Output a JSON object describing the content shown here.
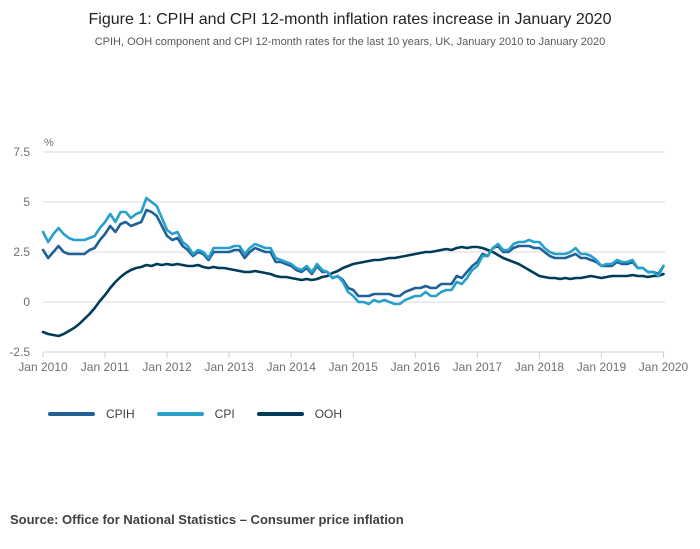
{
  "header": {
    "title": "Figure 1: CPIH and CPI 12-month inflation rates increase in January 2020",
    "subtitle": "CPIH, OOH component and CPI 12-month rates for the last 10 years, UK, January 2010 to January 2020"
  },
  "chart_data": {
    "type": "line",
    "title": "Figure 1: CPIH and CPI 12-month inflation rates increase in January 2020",
    "ylabel": "%",
    "ylim": [
      -2.5,
      7.5
    ],
    "y_ticks": [
      7.5,
      5,
      2.5,
      0,
      -2.5
    ],
    "y_tick_labels": [
      "7.5",
      "5",
      "2.5",
      "0",
      "-2.5"
    ],
    "x_frequency": "monthly",
    "x_range": [
      "Jan 2010",
      "Jan 2020"
    ],
    "x_tick_labels": [
      "Jan 2010",
      "Jan 2011",
      "Jan 2012",
      "Jan 2013",
      "Jan 2014",
      "Jan 2015",
      "Jan 2016",
      "Jan 2017",
      "Jan 2018",
      "Jan 2019",
      "Jan 2020"
    ],
    "grid": "horizontal",
    "legend_position": "below",
    "series": [
      {
        "name": "CPIH",
        "color": "#206095",
        "values": [
          2.6,
          2.2,
          2.5,
          2.8,
          2.5,
          2.4,
          2.4,
          2.4,
          2.4,
          2.6,
          2.7,
          3.1,
          3.4,
          3.8,
          3.5,
          3.9,
          4.0,
          3.8,
          3.9,
          4.0,
          4.6,
          4.5,
          4.3,
          3.8,
          3.3,
          3.1,
          3.2,
          2.8,
          2.6,
          2.3,
          2.5,
          2.4,
          2.1,
          2.5,
          2.5,
          2.5,
          2.5,
          2.6,
          2.6,
          2.2,
          2.5,
          2.7,
          2.6,
          2.5,
          2.5,
          2.0,
          2.0,
          1.9,
          1.8,
          1.6,
          1.5,
          1.7,
          1.4,
          1.8,
          1.5,
          1.5,
          1.2,
          1.3,
          1.1,
          0.7,
          0.6,
          0.3,
          0.3,
          0.3,
          0.4,
          0.4,
          0.4,
          0.4,
          0.3,
          0.3,
          0.5,
          0.6,
          0.7,
          0.7,
          0.8,
          0.7,
          0.7,
          0.9,
          0.9,
          0.9,
          1.3,
          1.2,
          1.5,
          1.8,
          2.0,
          2.4,
          2.3,
          2.7,
          2.8,
          2.5,
          2.5,
          2.7,
          2.8,
          2.8,
          2.8,
          2.7,
          2.7,
          2.5,
          2.3,
          2.2,
          2.2,
          2.2,
          2.3,
          2.4,
          2.2,
          2.2,
          2.1,
          2.0,
          1.8,
          1.8,
          1.8,
          2.0,
          1.9,
          1.9,
          2.0,
          1.7,
          1.7,
          1.5,
          1.5,
          1.4,
          1.8
        ]
      },
      {
        "name": "CPI",
        "color": "#27A0CC",
        "values": [
          3.5,
          3.0,
          3.4,
          3.7,
          3.4,
          3.2,
          3.1,
          3.1,
          3.1,
          3.2,
          3.3,
          3.7,
          4.0,
          4.4,
          4.0,
          4.5,
          4.5,
          4.2,
          4.4,
          4.5,
          5.2,
          5.0,
          4.8,
          4.2,
          3.6,
          3.4,
          3.5,
          3.0,
          2.8,
          2.4,
          2.6,
          2.5,
          2.2,
          2.7,
          2.7,
          2.7,
          2.7,
          2.8,
          2.8,
          2.4,
          2.7,
          2.9,
          2.8,
          2.7,
          2.7,
          2.2,
          2.1,
          2.0,
          1.9,
          1.7,
          1.6,
          1.8,
          1.5,
          1.9,
          1.6,
          1.5,
          1.2,
          1.3,
          1.0,
          0.5,
          0.3,
          0.0,
          0.0,
          -0.1,
          0.1,
          0.0,
          0.1,
          0.0,
          -0.1,
          -0.1,
          0.1,
          0.2,
          0.3,
          0.3,
          0.5,
          0.3,
          0.3,
          0.5,
          0.6,
          0.6,
          1.0,
          0.9,
          1.2,
          1.6,
          1.8,
          2.3,
          2.3,
          2.7,
          2.9,
          2.6,
          2.6,
          2.9,
          3.0,
          3.0,
          3.1,
          3.0,
          3.0,
          2.7,
          2.5,
          2.4,
          2.4,
          2.4,
          2.5,
          2.7,
          2.4,
          2.4,
          2.3,
          2.1,
          1.8,
          1.9,
          1.9,
          2.1,
          2.0,
          2.0,
          2.1,
          1.7,
          1.7,
          1.5,
          1.5,
          1.3,
          1.8
        ]
      },
      {
        "name": "OOH",
        "color": "#003C57",
        "values": [
          -1.5,
          -1.6,
          -1.65,
          -1.7,
          -1.6,
          -1.45,
          -1.3,
          -1.1,
          -0.85,
          -0.6,
          -0.3,
          0.05,
          0.35,
          0.7,
          1.0,
          1.25,
          1.45,
          1.6,
          1.7,
          1.75,
          1.85,
          1.8,
          1.9,
          1.85,
          1.9,
          1.85,
          1.9,
          1.85,
          1.8,
          1.8,
          1.85,
          1.75,
          1.7,
          1.75,
          1.7,
          1.7,
          1.65,
          1.6,
          1.55,
          1.5,
          1.5,
          1.55,
          1.5,
          1.45,
          1.4,
          1.3,
          1.25,
          1.25,
          1.2,
          1.15,
          1.1,
          1.15,
          1.1,
          1.15,
          1.25,
          1.3,
          1.45,
          1.55,
          1.7,
          1.8,
          1.9,
          1.95,
          2.0,
          2.05,
          2.1,
          2.1,
          2.15,
          2.2,
          2.2,
          2.25,
          2.3,
          2.35,
          2.4,
          2.45,
          2.5,
          2.5,
          2.55,
          2.6,
          2.65,
          2.6,
          2.7,
          2.75,
          2.7,
          2.75,
          2.75,
          2.7,
          2.6,
          2.5,
          2.35,
          2.2,
          2.1,
          2.0,
          1.9,
          1.75,
          1.6,
          1.45,
          1.3,
          1.25,
          1.2,
          1.2,
          1.15,
          1.2,
          1.15,
          1.2,
          1.2,
          1.25,
          1.3,
          1.25,
          1.2,
          1.25,
          1.3,
          1.3,
          1.3,
          1.3,
          1.35,
          1.3,
          1.3,
          1.25,
          1.3,
          1.3,
          1.4
        ]
      }
    ]
  },
  "source": {
    "text": "Source: Office for National Statistics – Consumer price inflation"
  },
  "colors": {
    "gridline": "#d9d9d9",
    "axis_line": "#c7d5de",
    "axis_text": "#707071",
    "title_text": "#222222",
    "subtitle_text": "#58585a",
    "source_text": "#414042"
  }
}
